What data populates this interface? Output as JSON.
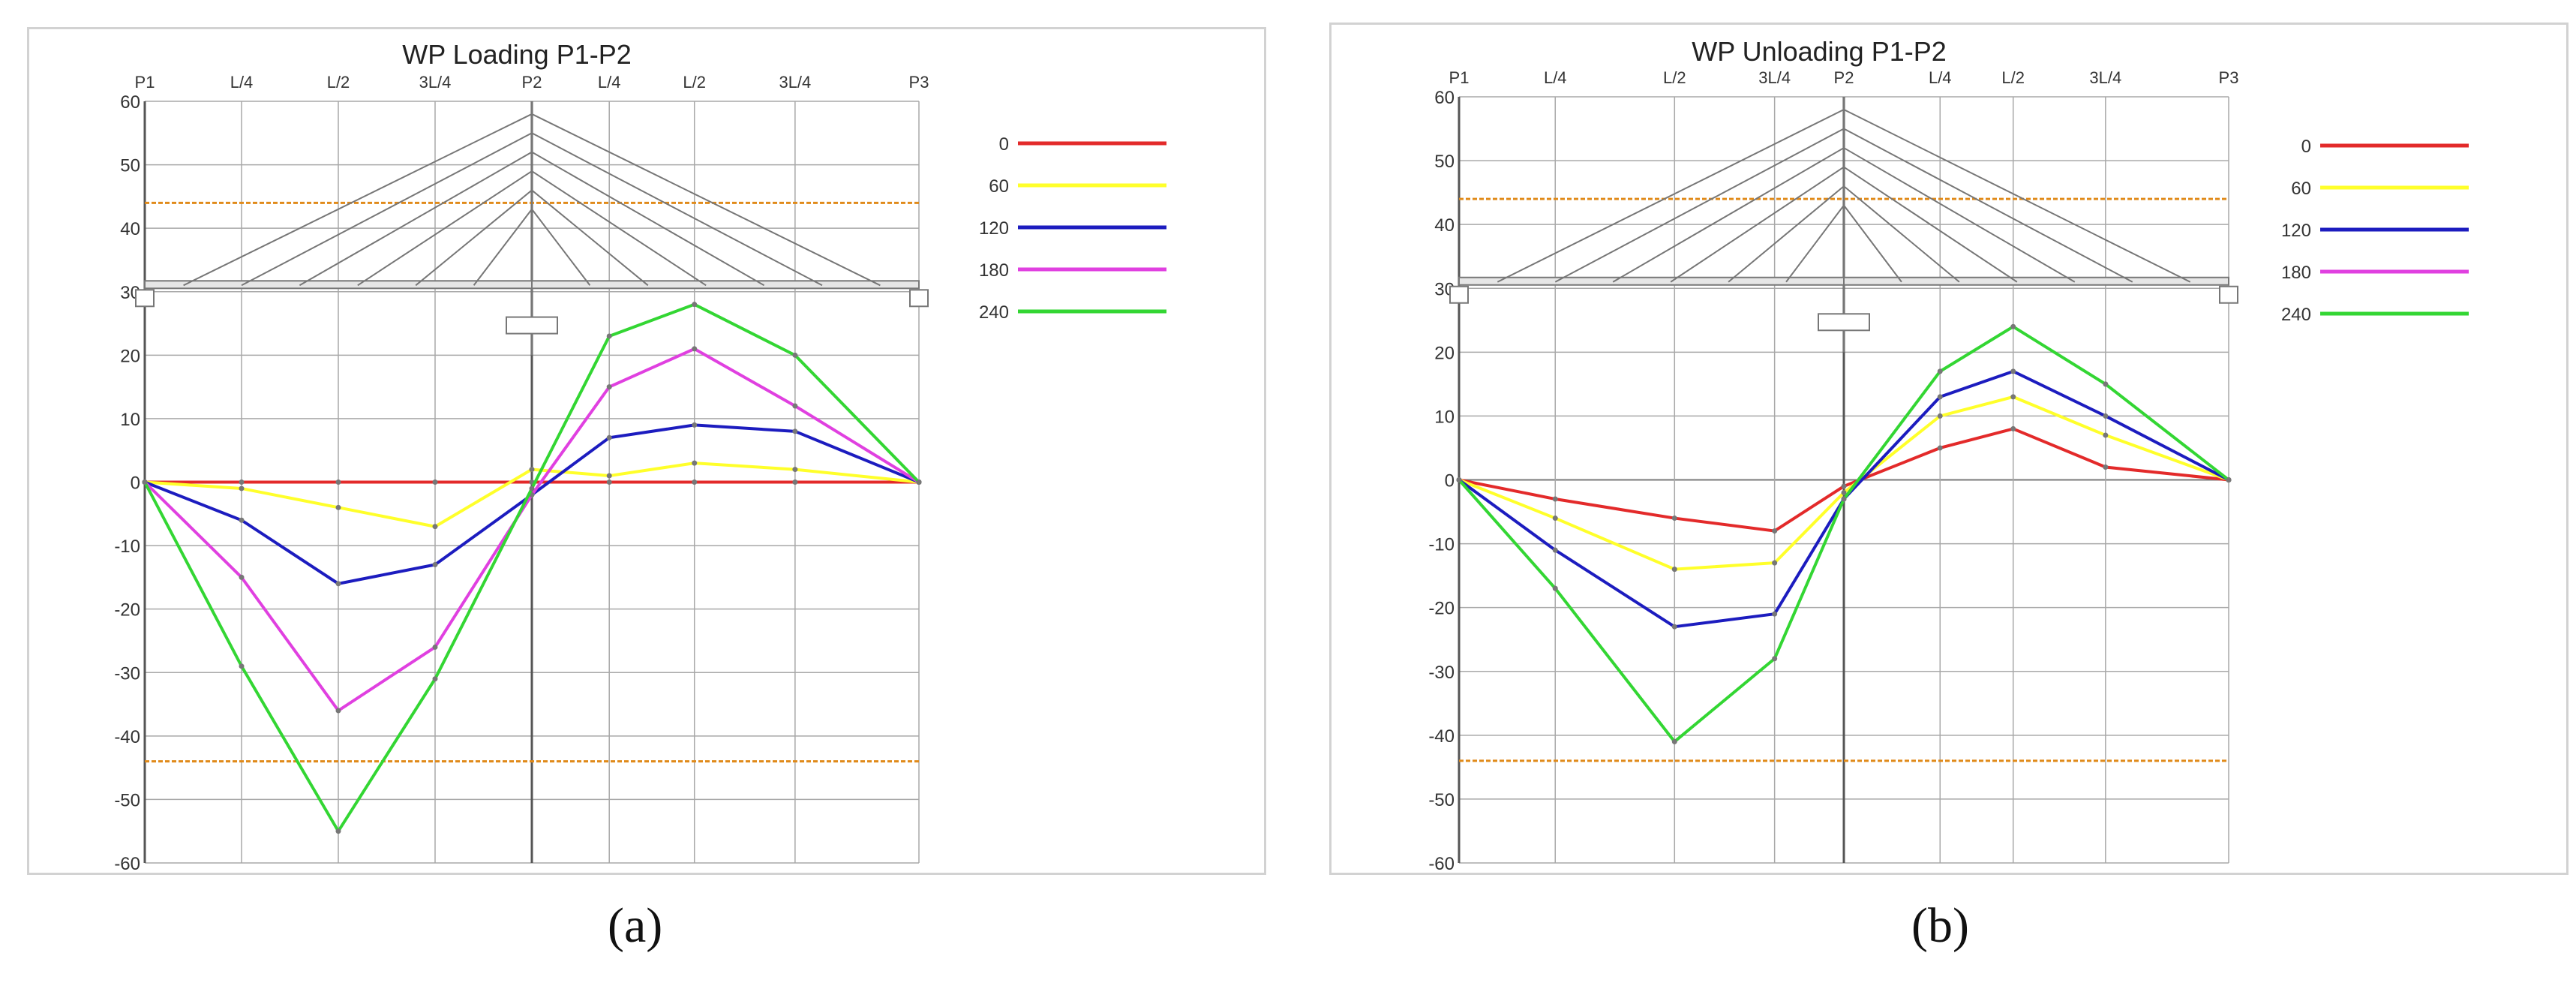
{
  "figure": {
    "captions": [
      "(a)",
      "(b)"
    ],
    "colors": {
      "series": [
        "#e32a2a",
        "#ffff2a",
        "#1c1cbf",
        "#e040e0",
        "#33d633"
      ],
      "limit_line": "#e08a1a",
      "bridge": "#777777",
      "grid": "#a8a8a8"
    }
  },
  "chart_data": [
    {
      "type": "line",
      "title": "WP Loading P1-P2",
      "xlabel": "",
      "ylabel": "",
      "categories": [
        "P1",
        "L/4",
        "L/2",
        "3L/4",
        "P2",
        "L/4",
        "L/2",
        "3L/4",
        "P3"
      ],
      "positions": [
        0,
        12.5,
        25,
        37.5,
        50,
        60,
        71,
        84,
        100
      ],
      "ylim": [
        -60,
        60
      ],
      "yticks": [
        -60,
        -50,
        -40,
        -30,
        -20,
        -10,
        0,
        10,
        20,
        30,
        40,
        50,
        60
      ],
      "limit_lines": [
        44,
        -44
      ],
      "grid": true,
      "legend_position": "right",
      "series": [
        {
          "name": "0",
          "x": [
            0,
            12.5,
            25,
            37.5,
            50,
            60,
            71,
            84,
            100
          ],
          "values": [
            0,
            0,
            0,
            0,
            0,
            0,
            0,
            0,
            0
          ]
        },
        {
          "name": "60",
          "x": [
            0,
            12.5,
            25,
            37.5,
            50,
            60,
            71,
            84,
            100
          ],
          "values": [
            0,
            -1,
            -4,
            -7,
            2,
            1,
            3,
            2,
            0
          ]
        },
        {
          "name": "120",
          "x": [
            0,
            12.5,
            25,
            37.5,
            50,
            60,
            71,
            84,
            100
          ],
          "values": [
            0,
            -6,
            -16,
            -13,
            -2,
            7,
            9,
            8,
            0
          ]
        },
        {
          "name": "180",
          "x": [
            0,
            12.5,
            25,
            37.5,
            50,
            60,
            71,
            84,
            100
          ],
          "values": [
            0,
            -15,
            -36,
            -26,
            -2,
            15,
            21,
            12,
            0
          ]
        },
        {
          "name": "240",
          "x": [
            0,
            12.5,
            25,
            37.5,
            50,
            60,
            71,
            84,
            100
          ],
          "values": [
            0,
            -29,
            -55,
            -31,
            -1,
            23,
            28,
            20,
            0
          ]
        }
      ]
    },
    {
      "type": "line",
      "title": "WP Unloading P1-P2",
      "xlabel": "",
      "ylabel": "",
      "categories": [
        "P1",
        "L/4",
        "L/2",
        "3L/4",
        "P2",
        "L/4",
        "L/2",
        "3L/4",
        "P3"
      ],
      "positions": [
        0,
        12.5,
        28,
        41,
        50,
        62.5,
        72,
        84,
        100
      ],
      "ylim": [
        -60,
        60
      ],
      "yticks": [
        -60,
        -50,
        -40,
        -30,
        -20,
        -10,
        0,
        10,
        20,
        30,
        40,
        50,
        60
      ],
      "limit_lines": [
        44,
        -44
      ],
      "grid": true,
      "legend_position": "right",
      "series": [
        {
          "name": "0",
          "x": [
            0,
            12.5,
            28,
            41,
            50,
            62.5,
            72,
            84,
            100
          ],
          "values": [
            0,
            -3,
            -6,
            -8,
            -1,
            5,
            8,
            2,
            0
          ]
        },
        {
          "name": "60",
          "x": [
            0,
            12.5,
            28,
            41,
            50,
            62.5,
            72,
            84,
            100
          ],
          "values": [
            0,
            -6,
            -14,
            -13,
            -2,
            10,
            13,
            7,
            0
          ]
        },
        {
          "name": "120",
          "x": [
            0,
            12.5,
            28,
            41,
            50,
            62.5,
            72,
            84,
            100
          ],
          "values": [
            0,
            -11,
            -23,
            -21,
            -3,
            13,
            17,
            10,
            0
          ]
        },
        {
          "name": "240",
          "x": [
            0,
            12.5,
            28,
            41,
            50,
            62.5,
            72,
            84,
            100
          ],
          "values": [
            0,
            -17,
            -41,
            -28,
            -3,
            17,
            24,
            15,
            0
          ]
        }
      ],
      "legend_entries": [
        "0",
        "60",
        "120",
        "180",
        "240"
      ]
    }
  ]
}
